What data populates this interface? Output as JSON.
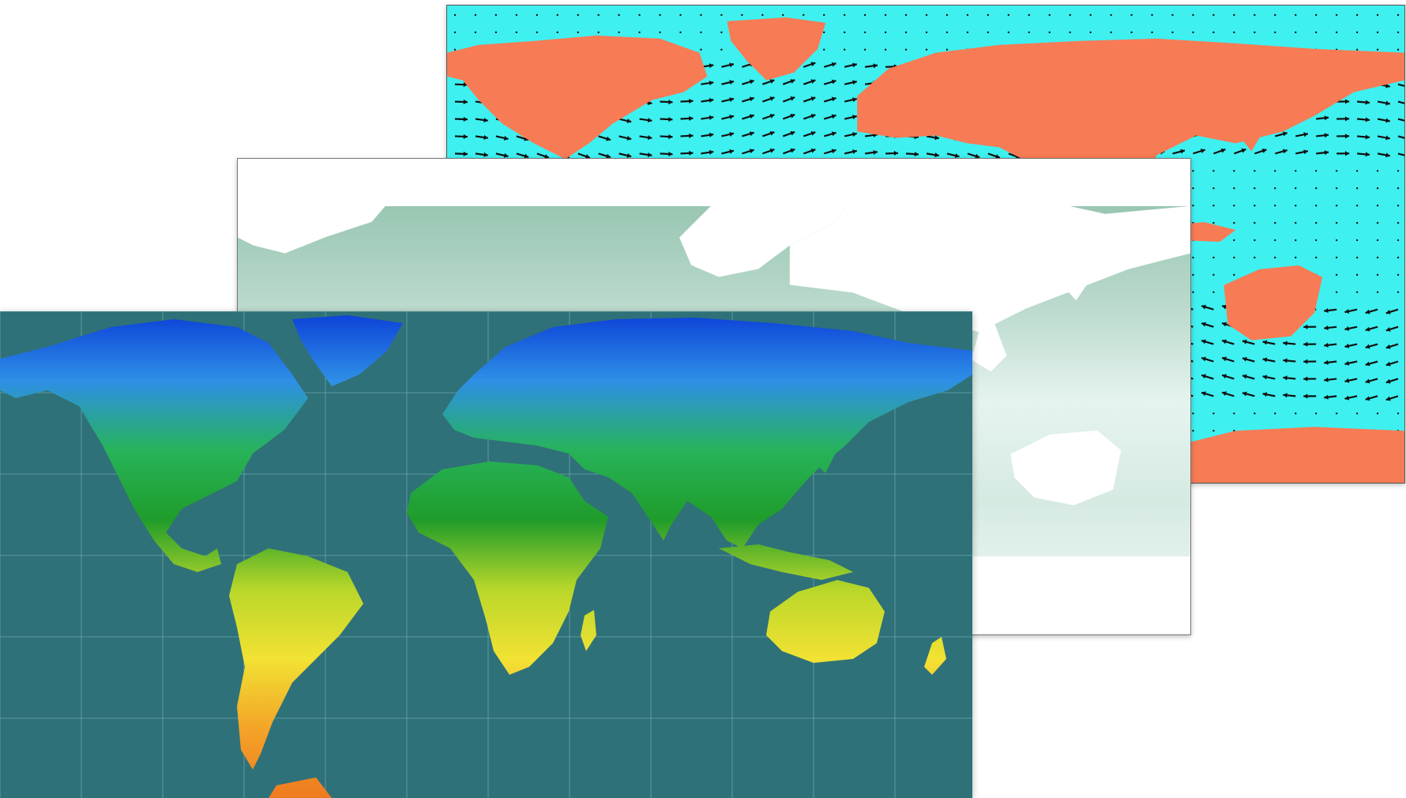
{
  "maps": [
    {
      "id": "wind",
      "kind": "wind-vector-map",
      "colors": {
        "ocean": "#3ff0f0",
        "land": "#f77b55",
        "arrow": "#111111"
      }
    },
    {
      "id": "chlorophyll",
      "kind": "ocean-shading-map",
      "colors": {
        "ocean_low": "#f3fbf9",
        "ocean_high": "#4f9b78",
        "land": "#ffffff",
        "frame": "#777777"
      }
    },
    {
      "id": "temperature",
      "kind": "land-temperature-map",
      "colors": {
        "ocean": "#2f7178",
        "grid": "#8fc4c8",
        "gradient": [
          "#0b3fd8",
          "#2e8fe6",
          "#27b35a",
          "#1f9c2a",
          "#b9d72a",
          "#f2e233",
          "#f3a428",
          "#ef7a1f"
        ]
      }
    }
  ]
}
